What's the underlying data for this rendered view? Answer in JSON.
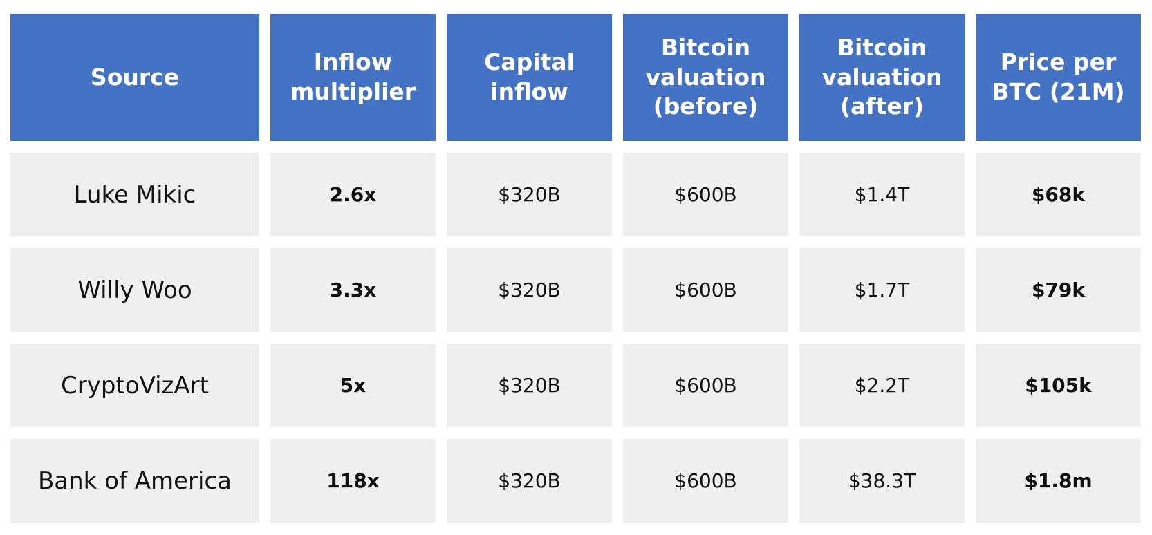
{
  "table": {
    "header": [
      "Source",
      "Inflow multiplier",
      "Capital inflow",
      "Bitcoin valuation (before)",
      "Bitcoin valuation (after)",
      "Price per BTC (21M)"
    ],
    "rows": [
      [
        "Luke Mikic",
        "2.6x",
        "$320B",
        "$600B",
        "$1.4T",
        "$68k"
      ],
      [
        "Willy Woo",
        "3.3x",
        "$320B",
        "$600B",
        "$1.7T",
        "$79k"
      ],
      [
        "CryptoVizArt",
        "5x",
        "$320B",
        "$600B",
        "$2.2T",
        "$105k"
      ],
      [
        "Bank of America",
        "118x",
        "$320B",
        "$600B",
        "$38.3T",
        "$1.8m"
      ]
    ]
  }
}
